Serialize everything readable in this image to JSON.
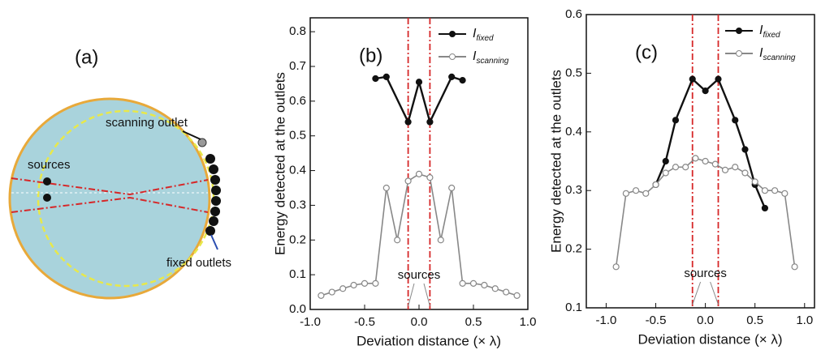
{
  "diagram": {
    "label": "(a)",
    "annotations": [
      "scanning outlet",
      "sources",
      "fixed outlets"
    ]
  },
  "chart_data": [
    {
      "type": "line",
      "title": "(b)",
      "xlabel": "Deviation distance (× λ)",
      "ylabel": "Energy detected at the outlets",
      "xlim": [
        -1,
        1
      ],
      "xticks": [
        {
          "value": -1,
          "label": "-1.0"
        },
        {
          "value": -0.5,
          "label": "-0.5"
        },
        {
          "value": 0,
          "label": "0.0"
        },
        {
          "value": 0.5,
          "label": "0.5"
        },
        {
          "value": 1,
          "label": "1.0"
        }
      ],
      "ylim": [
        0,
        0.84
      ],
      "yticks": [
        {
          "value": 0,
          "label": "0.0"
        },
        0.1,
        0.2,
        0.3,
        0.4,
        0.5,
        0.6,
        0.7,
        0.8
      ],
      "source_lines": [
        -0.1,
        0.1
      ],
      "source_color": "#d62728",
      "annotation": "sources",
      "legend": "upper right",
      "series": [
        {
          "name": "Ifixed",
          "color": "#111111",
          "marker": "filled",
          "x": [
            -0.4,
            -0.3,
            -0.1,
            0,
            0.1,
            0.3,
            0.4
          ],
          "values": [
            0.665,
            0.67,
            0.54,
            0.655,
            0.54,
            0.67,
            0.66
          ]
        },
        {
          "name": "Iscanning",
          "color": "#888888",
          "marker": "open",
          "x": [
            -0.9,
            -0.8,
            -0.7,
            -0.6,
            -0.5,
            -0.4,
            -0.3,
            -0.2,
            -0.1,
            0,
            0.1,
            0.2,
            0.3,
            0.4,
            0.5,
            0.6,
            0.7,
            0.8,
            0.9
          ],
          "values": [
            0.04,
            0.05,
            0.06,
            0.07,
            0.075,
            0.075,
            0.35,
            0.2,
            0.37,
            0.39,
            0.38,
            0.2,
            0.35,
            0.075,
            0.075,
            0.07,
            0.06,
            0.05,
            0.04
          ]
        }
      ]
    },
    {
      "type": "line",
      "title": "(c)",
      "xlabel": "Deviation distance (× λ)",
      "ylabel": "Energy detected at the outlets",
      "xlim": [
        -1.2,
        1.1
      ],
      "xticks": [
        {
          "value": -1,
          "label": "-1.0"
        },
        {
          "value": -0.5,
          "label": "-0.5"
        },
        {
          "value": 0,
          "label": "0.0"
        },
        {
          "value": 0.5,
          "label": "0.5"
        },
        {
          "value": 1,
          "label": "1.0"
        }
      ],
      "ylim": [
        0.1,
        0.6
      ],
      "yticks": [
        0.1,
        0.2,
        0.3,
        0.4,
        0.5,
        0.6
      ],
      "source_lines": [
        -0.13,
        0.13
      ],
      "source_color": "#d62728",
      "annotation": "sources",
      "legend": "upper right",
      "series": [
        {
          "name": "Ifixed",
          "color": "#111111",
          "marker": "filled",
          "x": [
            -0.5,
            -0.4,
            -0.3,
            -0.13,
            0,
            0.13,
            0.3,
            0.4,
            0.5,
            0.6
          ],
          "values": [
            0.31,
            0.35,
            0.42,
            0.49,
            0.47,
            0.49,
            0.42,
            0.37,
            0.31,
            0.27
          ]
        },
        {
          "name": "Iscanning",
          "color": "#888888",
          "marker": "open",
          "x": [
            -0.9,
            -0.8,
            -0.7,
            -0.6,
            -0.5,
            -0.4,
            -0.3,
            -0.2,
            -0.1,
            0,
            0.1,
            0.2,
            0.3,
            0.4,
            0.5,
            0.6,
            0.7,
            0.8,
            0.9
          ],
          "values": [
            0.17,
            0.295,
            0.3,
            0.295,
            0.31,
            0.33,
            0.34,
            0.34,
            0.355,
            0.35,
            0.345,
            0.335,
            0.34,
            0.33,
            0.315,
            0.3,
            0.3,
            0.295,
            0.17
          ]
        }
      ]
    }
  ]
}
